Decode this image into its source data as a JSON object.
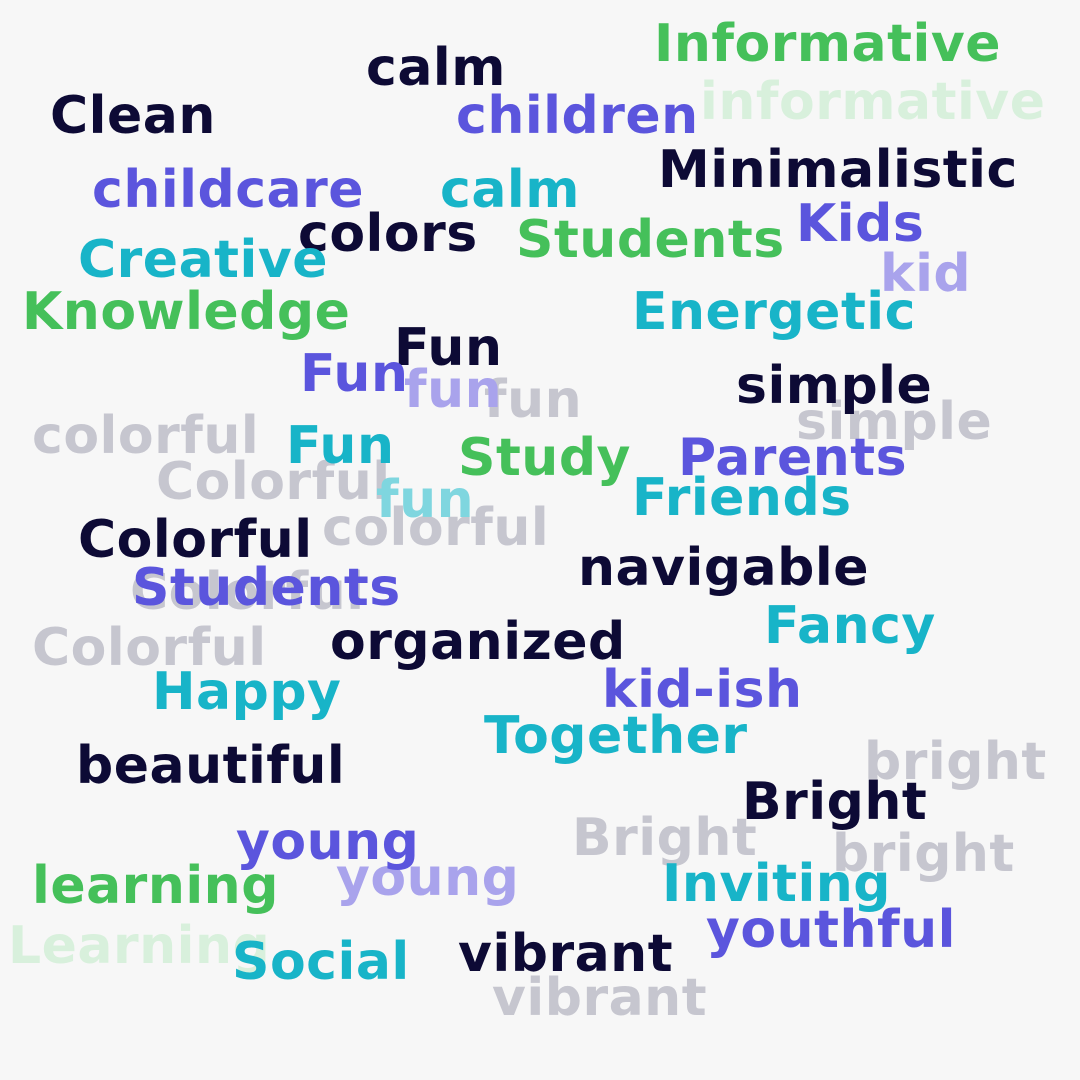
{
  "colors": {
    "background": "#f7f7f7",
    "navy": "#0d0a35",
    "green": "#45c05a",
    "teal": "#18b4c8",
    "purple": "#5b55dd",
    "lavender": "#a9a3ec",
    "gray": "#c6c6cf",
    "pale_green": "#d8f0dc",
    "light_teal": "#7fd6df"
  },
  "words": [
    {
      "text": "Informative",
      "color": "green"
    },
    {
      "text": "informative",
      "color": "pale_green"
    },
    {
      "text": "calm",
      "color": "navy"
    },
    {
      "text": "Clean",
      "color": "navy"
    },
    {
      "text": "children",
      "color": "purple"
    },
    {
      "text": "Minimalistic",
      "color": "navy"
    },
    {
      "text": "childcare",
      "color": "purple"
    },
    {
      "text": "calm",
      "color": "teal"
    },
    {
      "text": "Kids",
      "color": "purple"
    },
    {
      "text": "colors",
      "color": "navy"
    },
    {
      "text": "Students",
      "color": "green"
    },
    {
      "text": "Creative",
      "color": "teal"
    },
    {
      "text": "kid",
      "color": "lavender"
    },
    {
      "text": "Knowledge",
      "color": "green"
    },
    {
      "text": "Energetic",
      "color": "teal"
    },
    {
      "text": "Fun",
      "color": "navy"
    },
    {
      "text": "Fun",
      "color": "purple"
    },
    {
      "text": "fun",
      "color": "lavender"
    },
    {
      "text": "fun",
      "color": "gray"
    },
    {
      "text": "simple",
      "color": "navy"
    },
    {
      "text": "simple",
      "color": "gray"
    },
    {
      "text": "colorful",
      "color": "gray"
    },
    {
      "text": "Fun",
      "color": "teal"
    },
    {
      "text": "Study",
      "color": "green"
    },
    {
      "text": "Parents",
      "color": "purple"
    },
    {
      "text": "Colorful",
      "color": "gray"
    },
    {
      "text": "fun",
      "color": "light_teal"
    },
    {
      "text": "Friends",
      "color": "teal"
    },
    {
      "text": "Colorful",
      "color": "navy"
    },
    {
      "text": "colorful",
      "color": "gray"
    },
    {
      "text": "navigable",
      "color": "navy"
    },
    {
      "text": "Colorful",
      "color": "gray"
    },
    {
      "text": "Students",
      "color": "purple"
    },
    {
      "text": "Fancy",
      "color": "teal"
    },
    {
      "text": "Colorful",
      "color": "gray"
    },
    {
      "text": "organized",
      "color": "navy"
    },
    {
      "text": "Happy",
      "color": "teal"
    },
    {
      "text": "kid-ish",
      "color": "purple"
    },
    {
      "text": "Together",
      "color": "teal"
    },
    {
      "text": "bright",
      "color": "gray"
    },
    {
      "text": "beautiful",
      "color": "navy"
    },
    {
      "text": "Bright",
      "color": "navy"
    },
    {
      "text": "young",
      "color": "purple"
    },
    {
      "text": "Bright",
      "color": "gray"
    },
    {
      "text": "bright",
      "color": "gray"
    },
    {
      "text": "learning",
      "color": "green"
    },
    {
      "text": "young",
      "color": "lavender"
    },
    {
      "text": "Inviting",
      "color": "teal"
    },
    {
      "text": "youthful",
      "color": "purple"
    },
    {
      "text": "Learning",
      "color": "pale_green"
    },
    {
      "text": "Social",
      "color": "teal"
    },
    {
      "text": "vibrant",
      "color": "navy"
    },
    {
      "text": "vibrant",
      "color": "gray"
    }
  ]
}
